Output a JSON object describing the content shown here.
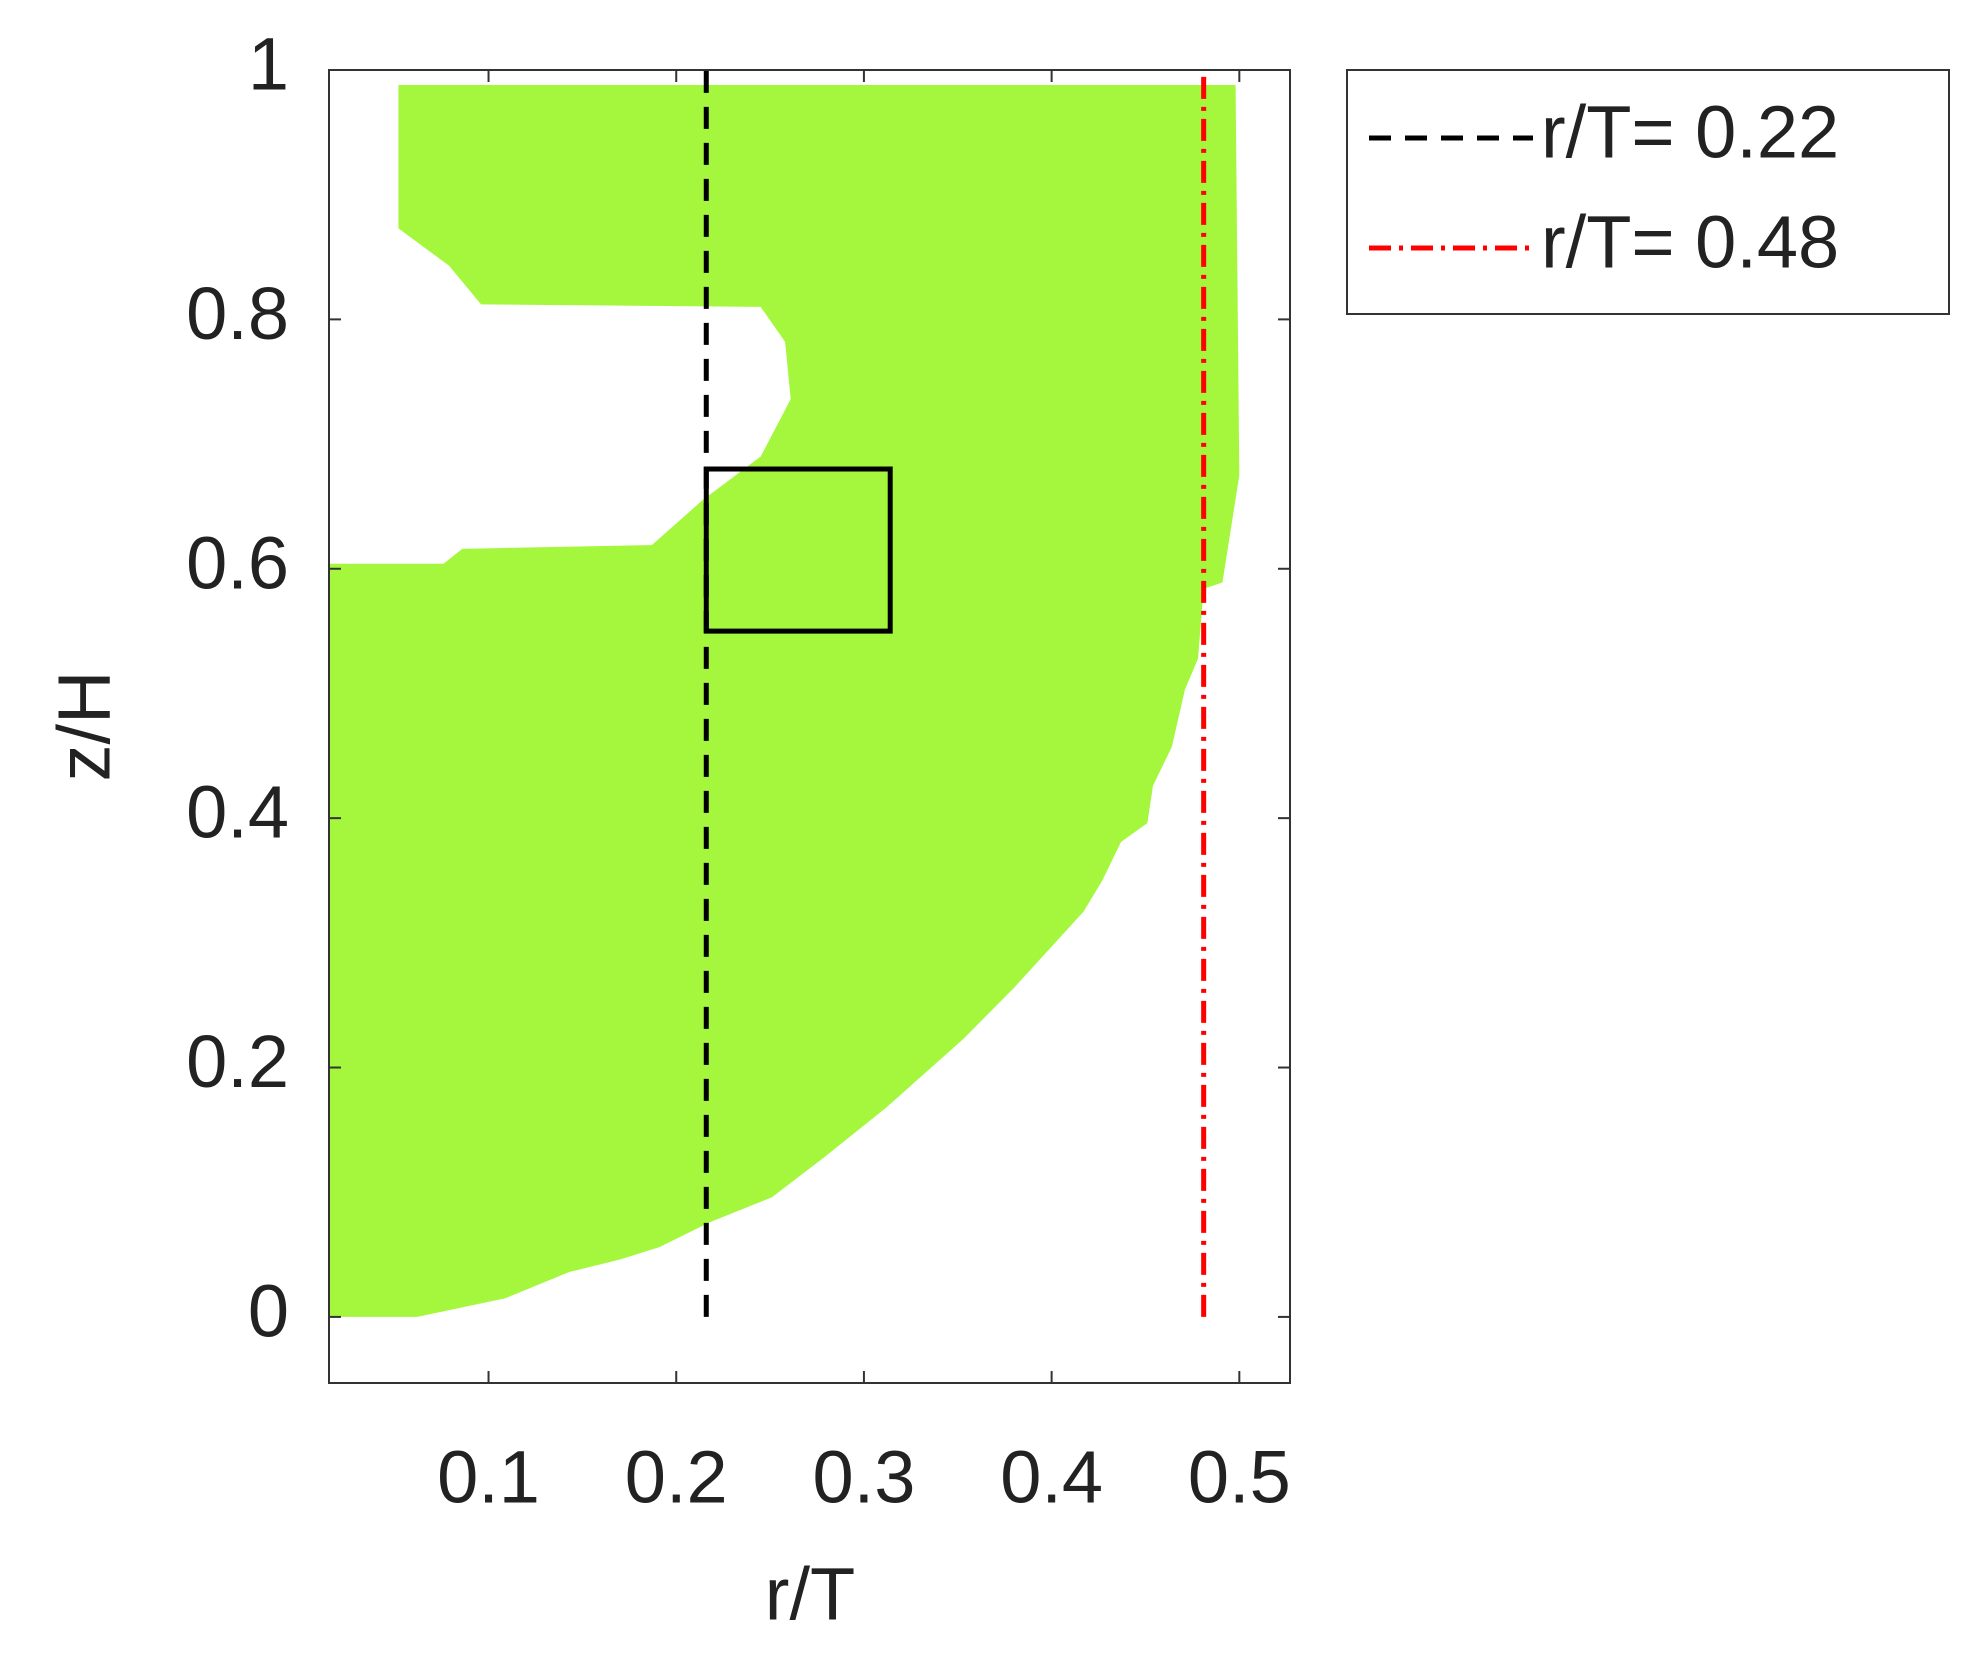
{
  "chart_data": {
    "type": "region",
    "x_label": "r/T",
    "y_label": "z/H",
    "xlim": [
      0.015,
      0.527
    ],
    "ylim": [
      -0.053,
      1
    ],
    "xticks": [
      0.1,
      0.2,
      0.3,
      0.4,
      0.5
    ],
    "yticks": [
      0,
      0.2,
      0.4,
      0.6,
      0.8,
      1
    ],
    "region": {
      "color": "#a4f73c",
      "x": [
        0.052,
        0.498,
        0.5,
        0.491,
        0.481,
        0.478,
        0.471,
        0.464,
        0.454,
        0.451,
        0.437,
        0.427,
        0.417,
        0.38,
        0.353,
        0.312,
        0.278,
        0.251,
        0.218,
        0.191,
        0.17,
        0.143,
        0.109,
        0.062,
        0.015,
        0.015,
        0.076,
        0.086,
        0.187,
        0.214,
        0.245,
        0.261,
        0.258,
        0.245,
        0.096,
        0.079,
        0.052
      ],
      "y": [
        0.988,
        0.988,
        0.675,
        0.589,
        0.584,
        0.528,
        0.503,
        0.457,
        0.426,
        0.396,
        0.381,
        0.35,
        0.325,
        0.264,
        0.223,
        0.168,
        0.127,
        0.096,
        0.076,
        0.056,
        0.046,
        0.036,
        0.015,
        0,
        0,
        0.604,
        0.604,
        0.616,
        0.619,
        0.655,
        0.69,
        0.736,
        0.782,
        0.81,
        0.812,
        0.843,
        0.873
      ]
    },
    "box": {
      "x": [
        0.216,
        0.314
      ],
      "y": [
        0.55,
        0.68
      ],
      "color": "#000000"
    },
    "series": [
      {
        "name": "r/T= 0.22",
        "color": "#000000",
        "dash": "dashed",
        "x": [
          0.216,
          0.216
        ],
        "values": [
          0,
          1
        ]
      },
      {
        "name": "r/T= 0.48",
        "color": "#ff0000",
        "dash": "dashdot",
        "x": [
          0.481,
          0.481
        ],
        "values": [
          0,
          1
        ]
      }
    ],
    "legend": "outside-top-right"
  }
}
